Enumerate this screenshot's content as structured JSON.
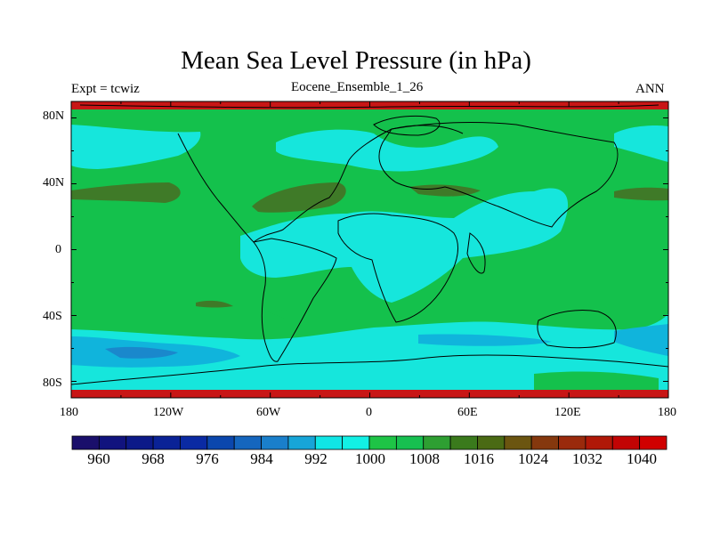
{
  "title": "Mean Sea Level Pressure (in hPa)",
  "subtitle_center": "Eocene_Ensemble_1_26",
  "subtitle_left": "Expt = tcwiz",
  "subtitle_right": "ANN",
  "axes": {
    "lat_labels": [
      "80N",
      "40N",
      "0",
      "40S",
      "80S"
    ],
    "lon_labels": [
      "180",
      "120W",
      "60W",
      "0",
      "60E",
      "120E",
      "180"
    ]
  },
  "colorbar": {
    "labels": [
      "960",
      "968",
      "976",
      "984",
      "992",
      "1000",
      "1008",
      "1016",
      "1024",
      "1032",
      "1040"
    ],
    "colors": [
      "#1a0f6b",
      "#11137e",
      "#0c1988",
      "#0a2296",
      "#0a2aa3",
      "#0b47ad",
      "#1566be",
      "#1a7fcb",
      "#17a5d8",
      "#10e6e6",
      "#12f0e5",
      "#1ec446",
      "#17c050",
      "#2e9f32",
      "#3a7a1c",
      "#4a6a14",
      "#6b5510",
      "#85380e",
      "#9a2a0c",
      "#b01808",
      "#c20404",
      "#d00000"
    ],
    "levels_min": 960,
    "levels_max": 1040
  },
  "field_colors": {
    "land_ocean_1000_1008": "#14c14c",
    "ocean_992_1000": "#16e6dc",
    "low_984_992": "#10b4dc",
    "deep_low_976_984": "#1a88cc",
    "high_1016_1024": "#3f7a28",
    "polar_edge": "#c81616"
  }
}
